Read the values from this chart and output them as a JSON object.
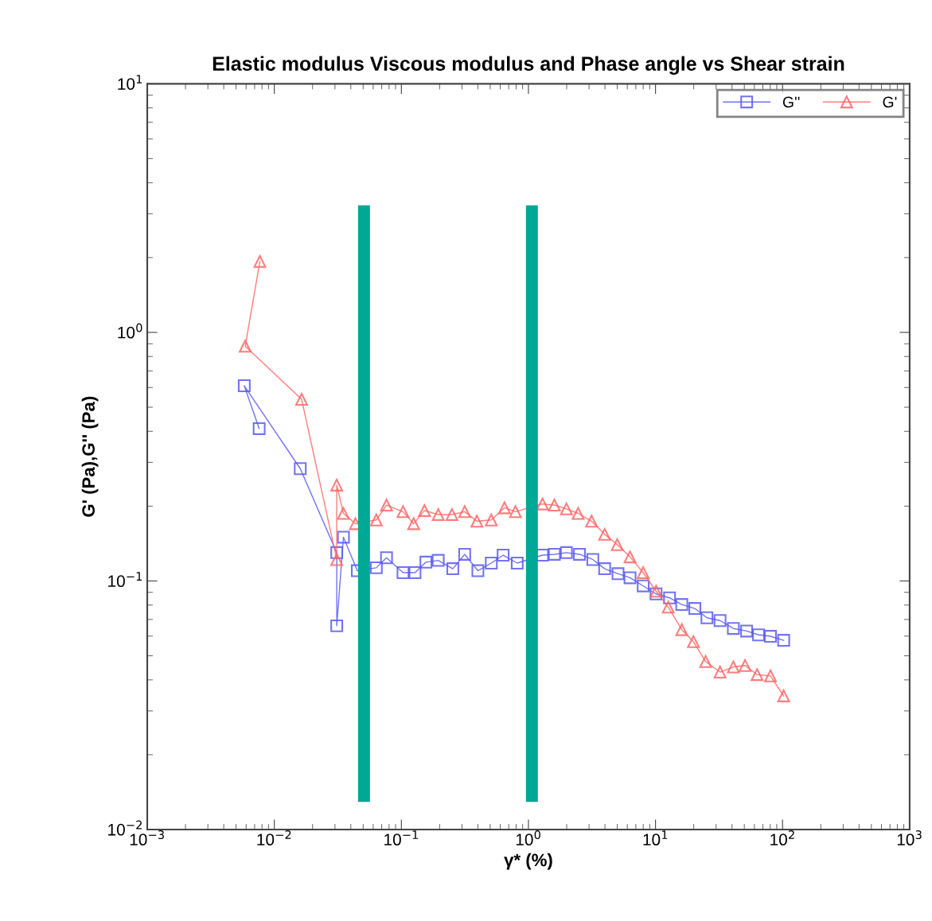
{
  "chart_data": {
    "type": "line",
    "title": "Elastic modulus Viscous modulus and Phase angle vs Shear strain",
    "xlabel": "γ* (%)",
    "ylabel": "G' (Pa),G'' (Pa)",
    "log": "xy",
    "grid": false,
    "legend": "top right",
    "line_style": "solid",
    "xlim": [
      0.001,
      1000
    ],
    "ylim": [
      0.01,
      10
    ],
    "xticks": [
      {
        "value": 0.001,
        "label": "10$^{−3}$"
      },
      {
        "value": 0.01,
        "label": "10$^{−2}$"
      },
      {
        "value": 0.1,
        "label": "10$^{−1}$"
      },
      {
        "value": 1,
        "label": "10$^{0}$"
      },
      {
        "value": 10,
        "label": "10$^{1}$"
      },
      {
        "value": 100,
        "label": "10$^{2}$"
      },
      {
        "value": 1000,
        "label": "10$^{3}$"
      }
    ],
    "yticks": [
      {
        "value": 0.01,
        "label": "10$^{−2}$"
      },
      {
        "value": 0.1,
        "label": "10$^{−1}$"
      },
      {
        "value": 1,
        "label": "10$^{0}$"
      },
      {
        "value": 10,
        "label": "10$^{1}$"
      }
    ],
    "series": [
      {
        "name": "G''",
        "color": "#5a5af0",
        "marker": "square",
        "x": [
          0.0076,
          0.0058,
          0.016,
          0.031,
          0.031,
          0.035,
          0.045,
          0.0635,
          0.0764,
          0.103,
          0.128,
          0.156,
          0.195,
          0.254,
          0.315,
          0.4,
          0.51,
          0.632,
          0.816,
          1.29,
          1.6,
          1.99,
          2.52,
          3.21,
          3.98,
          5.07,
          6.3,
          8.0,
          10.1,
          12.9,
          16.1,
          20.4,
          25.4,
          32.2,
          41.0,
          52.1,
          64.7,
          80.3,
          102
        ],
        "values": [
          0.41,
          0.61,
          0.283,
          0.13,
          0.066,
          0.15,
          0.11,
          0.113,
          0.124,
          0.108,
          0.108,
          0.119,
          0.121,
          0.112,
          0.128,
          0.11,
          0.118,
          0.127,
          0.118,
          0.127,
          0.128,
          0.13,
          0.128,
          0.122,
          0.112,
          0.107,
          0.103,
          0.0955,
          0.0887,
          0.0855,
          0.0804,
          0.0775,
          0.0711,
          0.0693,
          0.0644,
          0.0629,
          0.0607,
          0.0599,
          0.0577
        ]
      },
      {
        "name": "G'",
        "color": "#ff6666",
        "marker": "triangle",
        "x": [
          0.0077,
          0.0059,
          0.0164,
          0.031,
          0.031,
          0.035,
          0.0435,
          0.0635,
          0.0764,
          0.103,
          0.125,
          0.152,
          0.195,
          0.25,
          0.315,
          0.393,
          0.51,
          0.648,
          0.79,
          1.29,
          1.6,
          1.99,
          2.46,
          3.14,
          3.98,
          5.0,
          6.3,
          8.0,
          10.1,
          12.6,
          16.1,
          19.9,
          24.8,
          32.2,
          41.0,
          50.7,
          63.0,
          80.3,
          102
        ],
        "values": [
          1.93,
          0.88,
          0.538,
          0.122,
          0.243,
          0.187,
          0.17,
          0.176,
          0.202,
          0.19,
          0.17,
          0.192,
          0.185,
          0.185,
          0.19,
          0.174,
          0.176,
          0.197,
          0.19,
          0.204,
          0.202,
          0.195,
          0.187,
          0.174,
          0.154,
          0.14,
          0.125,
          0.108,
          0.091,
          0.0785,
          0.0637,
          0.057,
          0.0474,
          0.043,
          0.0451,
          0.0457,
          0.042,
          0.0415,
          0.0345
        ]
      }
    ],
    "bands": [
      {
        "axis": "x",
        "from": 0.0456,
        "to": 0.0566,
        "color": "#00a896"
      },
      {
        "axis": "x",
        "from": 0.956,
        "to": 1.186,
        "color": "#00a896"
      }
    ]
  }
}
